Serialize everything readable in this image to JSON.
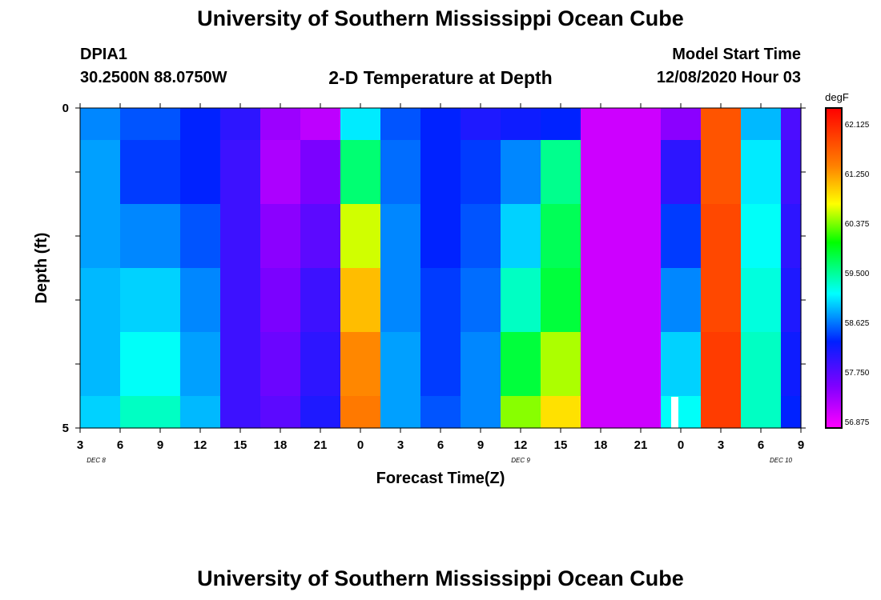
{
  "header": {
    "title": "University of Southern Mississippi Ocean Cube",
    "station": "DPIA1",
    "coords": "30.2500N 88.0750W",
    "subtitle": "2-D Temperature at Depth",
    "model_label": "Model Start Time",
    "model_time": "12/08/2020 Hour 03"
  },
  "footer": {
    "title": "University of Southern Mississippi Ocean Cube"
  },
  "chart_data": {
    "type": "heatmap",
    "title": "2-D Temperature at Depth",
    "xlabel": "Forecast Time(Z)",
    "ylabel": "Depth (ft)",
    "x_tick_labels": [
      "3",
      "6",
      "9",
      "12",
      "15",
      "18",
      "21",
      "0",
      "3",
      "6",
      "9",
      "12",
      "15",
      "18",
      "21",
      "0",
      "3",
      "6",
      "9"
    ],
    "day_labels": [
      "DEC 8",
      "DEC 9",
      "DEC 10"
    ],
    "y_tick_labels": [
      "0",
      "5"
    ],
    "ylim": [
      0,
      5
    ],
    "colorbar": {
      "unit": "degF",
      "tick_labels": [
        "62.125",
        "61.250",
        "60.375",
        "59.500",
        "58.625",
        "57.750",
        "56.875"
      ],
      "range": [
        56.6,
        62.5
      ]
    },
    "depth_rows_ft": [
      "0.0-0.5",
      "0.5-1.5",
      "1.5-2.5",
      "2.5-3.5",
      "3.5-4.5",
      "4.5-5.0"
    ],
    "forecast_hours": [
      3,
      9,
      12,
      15,
      18,
      21,
      24,
      27,
      30,
      33,
      36,
      39,
      42,
      45,
      48,
      51,
      54,
      57
    ],
    "temperature_by_row": [
      [
        58.6,
        58.4,
        58.2,
        57.9,
        57.2,
        57.0,
        59.0,
        58.4,
        58.2,
        58.0,
        58.1,
        58.2,
        56.9,
        56.9,
        57.3,
        61.8,
        58.8,
        57.7
      ],
      [
        58.7,
        58.3,
        58.2,
        57.8,
        57.1,
        57.4,
        59.6,
        58.5,
        58.2,
        58.3,
        58.6,
        59.5,
        56.9,
        56.9,
        57.9,
        61.8,
        59.0,
        57.8
      ],
      [
        58.7,
        58.6,
        58.4,
        57.8,
        57.3,
        57.6,
        60.6,
        58.6,
        58.2,
        58.4,
        58.9,
        59.7,
        56.9,
        56.9,
        58.3,
        61.9,
        59.1,
        57.9
      ],
      [
        58.8,
        58.9,
        58.6,
        57.8,
        57.4,
        57.8,
        61.1,
        58.6,
        58.3,
        58.5,
        59.3,
        59.8,
        56.9,
        56.9,
        58.6,
        61.9,
        59.2,
        58.0
      ],
      [
        58.8,
        59.1,
        58.7,
        57.8,
        57.5,
        57.9,
        61.4,
        58.7,
        58.3,
        58.6,
        59.8,
        60.5,
        56.9,
        56.9,
        58.9,
        62.0,
        59.3,
        58.1
      ],
      [
        58.9,
        59.3,
        58.8,
        57.8,
        57.6,
        58.0,
        61.5,
        58.7,
        58.4,
        58.6,
        60.4,
        60.9,
        56.9,
        56.9,
        59.1,
        62.0,
        59.3,
        58.2
      ]
    ],
    "missing_value_note": ""
  },
  "colors": {
    "frame": "#000000",
    "missing": "#ffffff"
  }
}
